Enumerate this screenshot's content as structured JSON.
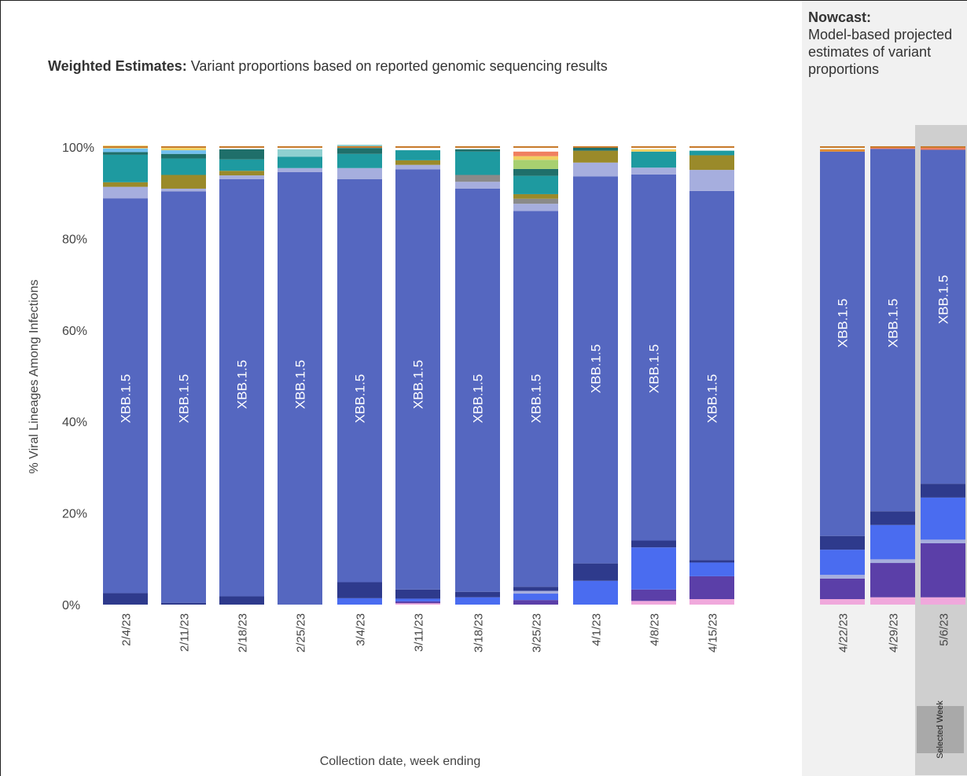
{
  "title": {
    "bold": "Weighted Estimates:",
    "text": "Variant proportions based on reported genomic sequencing results"
  },
  "nowcast": {
    "bold": "Nowcast:",
    "text": "Model-based projected estimates of variant proportions"
  },
  "selected_week_label": "Selected Week",
  "colors": {
    "XBB.1.5": "#5567c0",
    "dark-navy": "#2e3a8c",
    "blue": "#4a6cf0",
    "purple": "#5b3fa8",
    "pink": "#f0a8dc",
    "light-purple": "#a6aede",
    "teal": "#1e9aa0",
    "olive": "#9a8a2a",
    "dark-teal": "#1f6f6a",
    "gray": "#8a8a8a",
    "light-teal": "#8fd0d0",
    "light-green": "#a8d070",
    "salmon": "#f08060",
    "yellow": "#f0d060",
    "orange": "#e08a30",
    "sky": "#70c0f0"
  },
  "chart_data": {
    "type": "bar",
    "stacked": true,
    "xlabel": "Collection date, week ending",
    "ylabel": "% Viral Lineages Among Infections",
    "ylim": [
      0,
      100
    ],
    "yticks": [
      "0%",
      "20%",
      "40%",
      "60%",
      "80%",
      "100%"
    ],
    "bar_label": "XBB.1.5",
    "categories": [
      "2/4/23",
      "2/11/23",
      "2/18/23",
      "2/25/23",
      "3/4/23",
      "3/11/23",
      "3/18/23",
      "3/25/23",
      "4/1/23",
      "4/8/23",
      "4/15/23",
      "4/22/23",
      "4/29/23",
      "5/6/23"
    ],
    "nowcast_categories": [
      "4/22/23",
      "4/29/23",
      "5/6/23"
    ],
    "selected_week": "5/6/23",
    "stacks": [
      [
        [
          "dark-navy",
          2.5
        ],
        [
          "XBB.1.5",
          86.3
        ],
        [
          "light-purple",
          2.5
        ],
        [
          "olive",
          1
        ],
        [
          "teal",
          6
        ],
        [
          "dark-teal",
          0.6
        ],
        [
          "sky",
          0.8
        ],
        [
          "yellow",
          0.6
        ]
      ],
      [
        [
          "dark-navy",
          0.4
        ],
        [
          "XBB.1.5",
          89.9
        ],
        [
          "light-purple",
          0.6
        ],
        [
          "olive",
          3
        ],
        [
          "teal",
          3.6
        ],
        [
          "dark-teal",
          1
        ],
        [
          "sky",
          0.8
        ],
        [
          "yellow",
          0.5
        ]
      ],
      [
        [
          "dark-navy",
          1.8
        ],
        [
          "XBB.1.5",
          91.2
        ],
        [
          "light-purple",
          0.8
        ],
        [
          "olive",
          1
        ],
        [
          "teal",
          2.5
        ],
        [
          "dark-teal",
          2.2
        ]
      ],
      [
        [
          "XBB.1.5",
          94.5
        ],
        [
          "light-purple",
          0.9
        ],
        [
          "teal",
          2.5
        ],
        [
          "light-teal",
          1.6
        ]
      ],
      [
        [
          "blue",
          1.4
        ],
        [
          "dark-navy",
          3.5
        ],
        [
          "XBB.1.5",
          88.1
        ],
        [
          "light-purple",
          2.4
        ],
        [
          "teal",
          3.1
        ],
        [
          "dark-teal",
          1.3
        ],
        [
          "light-teal",
          0.7
        ]
      ],
      [
        [
          "pink",
          0.3
        ],
        [
          "purple",
          0.4
        ],
        [
          "blue",
          0.6
        ],
        [
          "dark-navy",
          2
        ],
        [
          "XBB.1.5",
          91.8
        ],
        [
          "light-purple",
          1
        ],
        [
          "olive",
          1
        ],
        [
          "teal",
          2.2
        ]
      ],
      [
        [
          "blue",
          1.6
        ],
        [
          "dark-navy",
          1.2
        ],
        [
          "XBB.1.5",
          88.1
        ],
        [
          "light-purple",
          1.5
        ],
        [
          "gray",
          1.5
        ],
        [
          "teal",
          5.1
        ],
        [
          "dark-teal",
          0.5
        ]
      ],
      [
        [
          "purple",
          1
        ],
        [
          "blue",
          1.4
        ],
        [
          "light-purple",
          0.6
        ],
        [
          "dark-navy",
          0.9
        ],
        [
          "XBB.1.5",
          82.1
        ],
        [
          "light-purple",
          1.6
        ],
        [
          "gray",
          1.1
        ],
        [
          "olive",
          1
        ],
        [
          "teal",
          4
        ],
        [
          "dark-teal",
          1.5
        ],
        [
          "light-green",
          2
        ],
        [
          "yellow",
          0.8
        ],
        [
          "salmon",
          1
        ]
      ],
      [
        [
          "blue",
          5.2
        ],
        [
          "dark-navy",
          3.8
        ],
        [
          "XBB.1.5",
          84.6
        ],
        [
          "light-purple",
          3
        ],
        [
          "olive",
          2.6
        ],
        [
          "dark-teal",
          0.8
        ]
      ],
      [
        [
          "pink",
          0.8
        ],
        [
          "purple",
          2.5
        ],
        [
          "blue",
          9.2
        ],
        [
          "dark-navy",
          1.5
        ],
        [
          "XBB.1.5",
          80
        ],
        [
          "light-purple",
          1.5
        ],
        [
          "teal",
          3.5
        ],
        [
          "yellow",
          0.5
        ]
      ],
      [
        [
          "pink",
          1.2
        ],
        [
          "purple",
          5
        ],
        [
          "blue",
          3
        ],
        [
          "dark-navy",
          0.5
        ],
        [
          "XBB.1.5",
          80.7
        ],
        [
          "light-purple",
          4.6
        ],
        [
          "olive",
          3.2
        ],
        [
          "teal",
          1
        ]
      ],
      [
        [
          "pink",
          1.2
        ],
        [
          "purple",
          4.5
        ],
        [
          "light-purple",
          0.8
        ],
        [
          "blue",
          5.5
        ],
        [
          "dark-navy",
          3
        ],
        [
          "XBB.1.5",
          84
        ],
        [
          "orange",
          0.5
        ]
      ],
      [
        [
          "pink",
          1.6
        ],
        [
          "purple",
          7.5
        ],
        [
          "light-purple",
          0.8
        ],
        [
          "blue",
          7.5
        ],
        [
          "dark-navy",
          3
        ],
        [
          "XBB.1.5",
          79.2
        ],
        [
          "salmon",
          0.4
        ]
      ],
      [
        [
          "pink",
          1.6
        ],
        [
          "purple",
          11.8
        ],
        [
          "light-purple",
          0.8
        ],
        [
          "blue",
          9.2
        ],
        [
          "dark-navy",
          3
        ],
        [
          "XBB.1.5",
          73
        ],
        [
          "salmon",
          0.6
        ]
      ]
    ]
  }
}
